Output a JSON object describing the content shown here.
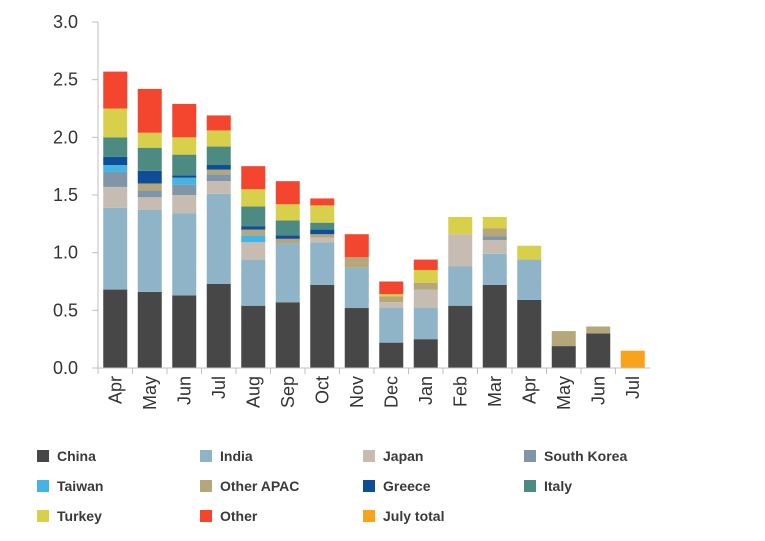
{
  "chart_data": {
    "type": "bar",
    "stacked": true,
    "title": "",
    "xlabel": "",
    "ylabel": "",
    "ylim": [
      0,
      3.0
    ],
    "yticks": [
      "0.0",
      "0.5",
      "1.0",
      "1.5",
      "2.0",
      "2.5",
      "3.0"
    ],
    "grid": false,
    "legend_position": "bottom",
    "categories": [
      "Apr",
      "May",
      "Jun",
      "Jul",
      "Aug",
      "Sep",
      "Oct",
      "Nov",
      "Dec",
      "Jan",
      "Feb",
      "Mar",
      "Apr",
      "May",
      "Jun",
      "Jul"
    ],
    "series": [
      {
        "name": "China",
        "color": "#474747",
        "values": [
          0.68,
          0.66,
          0.63,
          0.73,
          0.54,
          0.57,
          0.72,
          0.52,
          0.22,
          0.25,
          0.54,
          0.72,
          0.59,
          0.19,
          0.3,
          0
        ]
      },
      {
        "name": "India",
        "color": "#8fb3c7",
        "values": [
          0.71,
          0.71,
          0.71,
          0.78,
          0.4,
          0.51,
          0.37,
          0.35,
          0.3,
          0.27,
          0.34,
          0.27,
          0.35,
          0,
          0,
          0
        ]
      },
      {
        "name": "Japan",
        "color": "#c7bcb1",
        "values": [
          0.18,
          0.11,
          0.16,
          0.11,
          0.15,
          0,
          0.04,
          0,
          0.05,
          0.16,
          0.28,
          0.12,
          0,
          0,
          0,
          0
        ]
      },
      {
        "name": "South Korea",
        "color": "#7f96a8",
        "values": [
          0.13,
          0.06,
          0.09,
          0.06,
          0,
          0,
          0,
          0,
          0,
          0,
          0,
          0.03,
          0,
          0,
          0,
          0
        ]
      },
      {
        "name": "Taiwan",
        "color": "#45b3e3",
        "values": [
          0.06,
          0,
          0.06,
          0,
          0.06,
          0,
          0,
          0,
          0,
          0,
          0,
          0,
          0,
          0,
          0,
          0
        ]
      },
      {
        "name": "Other APAC",
        "color": "#b5a77a",
        "values": [
          0,
          0.06,
          0,
          0.04,
          0.05,
          0.04,
          0.03,
          0.09,
          0.05,
          0.06,
          0,
          0.07,
          0,
          0.13,
          0.06,
          0
        ]
      },
      {
        "name": "Greece",
        "color": "#0e4d97",
        "values": [
          0.07,
          0.11,
          0.02,
          0.04,
          0.03,
          0.03,
          0.04,
          0,
          0,
          0,
          0,
          0,
          0,
          0,
          0,
          0
        ]
      },
      {
        "name": "Italy",
        "color": "#4d8a82",
        "values": [
          0.17,
          0.2,
          0.18,
          0.16,
          0.17,
          0.13,
          0.06,
          0,
          0,
          0,
          0,
          0,
          0,
          0,
          0,
          0
        ]
      },
      {
        "name": "Turkey",
        "color": "#d8cf4a",
        "values": [
          0.25,
          0.13,
          0.15,
          0.14,
          0.15,
          0.14,
          0.15,
          0,
          0.02,
          0.11,
          0.15,
          0.1,
          0.12,
          0,
          0,
          0
        ]
      },
      {
        "name": "Other",
        "color": "#f4452f",
        "values": [
          0.32,
          0.38,
          0.29,
          0.13,
          0.2,
          0.2,
          0.06,
          0.2,
          0.11,
          0.09,
          0,
          0,
          0,
          0,
          0,
          0
        ]
      },
      {
        "name": "July total",
        "color": "#f9a31a",
        "values": [
          0,
          0,
          0,
          0,
          0,
          0,
          0,
          0,
          0,
          0,
          0,
          0,
          0,
          0,
          0,
          0.15
        ]
      }
    ]
  }
}
